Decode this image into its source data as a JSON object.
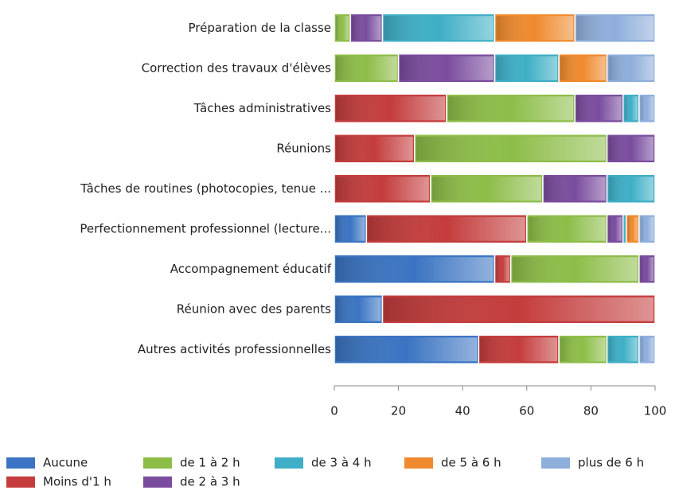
{
  "chart_data": {
    "type": "stacked_barh",
    "categories": [
      "Préparation de la classe",
      "Correction des travaux d'élèves",
      "Tâches administratives",
      "Réunions",
      "Tâches de routines (photocopies, tenue ...",
      "Perfectionnement professionnel (lecture...",
      "Accompagnement éducatif",
      "Réunion avec des parents",
      "Autres activités professionnelles"
    ],
    "series": [
      {
        "name": "Aucune",
        "color": "#3a74c2",
        "values": [
          0,
          0,
          0,
          0,
          0,
          10,
          50,
          15,
          45
        ]
      },
      {
        "name": "Moins d'1 h",
        "color": "#c43c3c",
        "values": [
          0,
          0,
          35,
          25,
          30,
          50,
          5,
          85,
          25
        ]
      },
      {
        "name": "de 1 à 2 h",
        "color": "#8dbd48",
        "values": [
          5,
          20,
          40,
          60,
          35,
          25,
          40,
          0,
          15
        ]
      },
      {
        "name": "de 2 à 3 h",
        "color": "#7a4c9e",
        "values": [
          10,
          30,
          15,
          15,
          20,
          5,
          5,
          0,
          0
        ]
      },
      {
        "name": "de 3 à 4 h",
        "color": "#3eafc6",
        "values": [
          35,
          20,
          5,
          0,
          15,
          1,
          0,
          0,
          10
        ]
      },
      {
        "name": "de 5 à 6 h",
        "color": "#ef8a2e",
        "values": [
          25,
          15,
          0,
          0,
          0,
          4,
          0,
          0,
          0
        ]
      },
      {
        "name": "plus de 6 h",
        "color": "#8eaedb",
        "values": [
          25,
          15,
          5,
          0,
          0,
          5,
          0,
          0,
          5
        ]
      }
    ],
    "xlim": [
      0,
      100
    ],
    "xticks": [
      0,
      20,
      40,
      60,
      80,
      100
    ]
  }
}
